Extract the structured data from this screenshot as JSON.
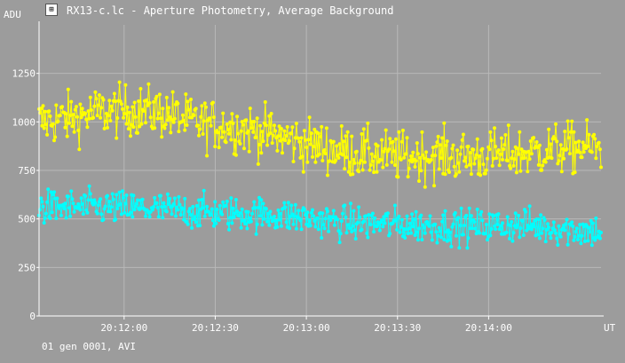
{
  "window": {
    "title": "RX13-c.lc - Aperture Photometry, Average Background",
    "icon": "app-icon"
  },
  "footer": {
    "text": "01 gen 0001, AVI"
  },
  "colors": {
    "background": "#9c9c9c",
    "grid": "#b8b8b8",
    "axis": "#ffffff",
    "series1": "#ffff00",
    "series2": "#00ffff"
  },
  "chart_data": {
    "type": "line",
    "ylabel": "ADU",
    "xlabel": "UT",
    "ylim": [
      0,
      1500
    ],
    "xlim": [
      "20:11:32",
      "20:14:37"
    ],
    "y_ticks": [
      0,
      250,
      500,
      750,
      1000,
      1250
    ],
    "x_ticks": [
      "20:12:00",
      "20:12:30",
      "20:13:00",
      "20:13:30",
      "20:14:00"
    ],
    "grid": true,
    "series": [
      {
        "color": "#ffff00",
        "trend": [
          [
            0,
            1000
          ],
          [
            10,
            1020
          ],
          [
            20,
            1050
          ],
          [
            30,
            1060
          ],
          [
            40,
            1050
          ],
          [
            50,
            1000
          ],
          [
            60,
            980
          ],
          [
            70,
            960
          ],
          [
            80,
            920
          ],
          [
            90,
            880
          ],
          [
            100,
            850
          ],
          [
            110,
            830
          ],
          [
            120,
            820
          ],
          [
            130,
            830
          ],
          [
            140,
            820
          ],
          [
            150,
            830
          ],
          [
            160,
            840
          ],
          [
            170,
            860
          ],
          [
            180,
            870
          ],
          [
            185,
            860
          ]
        ],
        "scatter": 140
      },
      {
        "color": "#00ffff",
        "trend": [
          [
            0,
            560
          ],
          [
            20,
            560
          ],
          [
            40,
            550
          ],
          [
            60,
            530
          ],
          [
            80,
            520
          ],
          [
            100,
            480
          ],
          [
            120,
            470
          ],
          [
            140,
            460
          ],
          [
            160,
            470
          ],
          [
            180,
            440
          ],
          [
            185,
            440
          ]
        ],
        "scatter": 95
      }
    ]
  }
}
